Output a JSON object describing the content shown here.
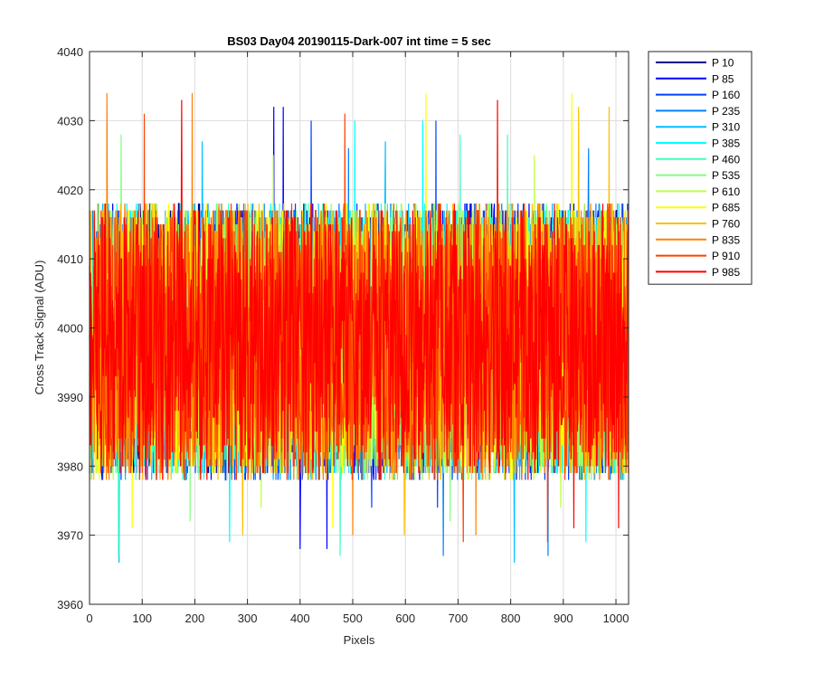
{
  "chart_data": {
    "type": "line",
    "title": "BS03 Day04 20190115-Dark-007 int time = 5 sec",
    "xlabel": "Pixels",
    "ylabel": "Cross Track Signal (ADU)",
    "xlim": [
      0,
      1024
    ],
    "ylim": [
      3960,
      4040
    ],
    "xticks": [
      0,
      100,
      200,
      300,
      400,
      500,
      600,
      700,
      800,
      900,
      1000
    ],
    "yticks": [
      3960,
      3970,
      3980,
      3990,
      4000,
      4010,
      4020,
      4030,
      4040
    ],
    "grid": true,
    "legend_position": "outside-right",
    "noise_model": {
      "points_per_series": 1024,
      "mean": 3998,
      "typical_range": [
        3978,
        4018
      ]
    },
    "series": [
      {
        "name": "P 10",
        "color": "#00008f",
        "peak": 4016,
        "trough": 3979
      },
      {
        "name": "P 85",
        "color": "#0000ff",
        "peak": 4032,
        "trough": 3968
      },
      {
        "name": "P 160",
        "color": "#0040ff",
        "peak": 4030,
        "trough": 3974
      },
      {
        "name": "P 235",
        "color": "#0080ff",
        "peak": 4026,
        "trough": 3967
      },
      {
        "name": "P 310",
        "color": "#00bfff",
        "peak": 4027,
        "trough": 3966
      },
      {
        "name": "P 385",
        "color": "#00ffff",
        "peak": 4030,
        "trough": 3969
      },
      {
        "name": "P 460",
        "color": "#40ffbf",
        "peak": 4028,
        "trough": 3967
      },
      {
        "name": "P 535",
        "color": "#80ff80",
        "peak": 4028,
        "trough": 3972
      },
      {
        "name": "P 610",
        "color": "#bfff40",
        "peak": 4025,
        "trough": 3974
      },
      {
        "name": "P 685",
        "color": "#ffff00",
        "peak": 4034,
        "trough": 3971
      },
      {
        "name": "P 760",
        "color": "#ffbf00",
        "peak": 4032,
        "trough": 3970
      },
      {
        "name": "P 835",
        "color": "#ff8000",
        "peak": 4034,
        "trough": 3970
      },
      {
        "name": "P 910",
        "color": "#ff4000",
        "peak": 4031,
        "trough": 3969
      },
      {
        "name": "P 985",
        "color": "#ff0000",
        "peak": 4033,
        "trough": 3971
      }
    ]
  }
}
